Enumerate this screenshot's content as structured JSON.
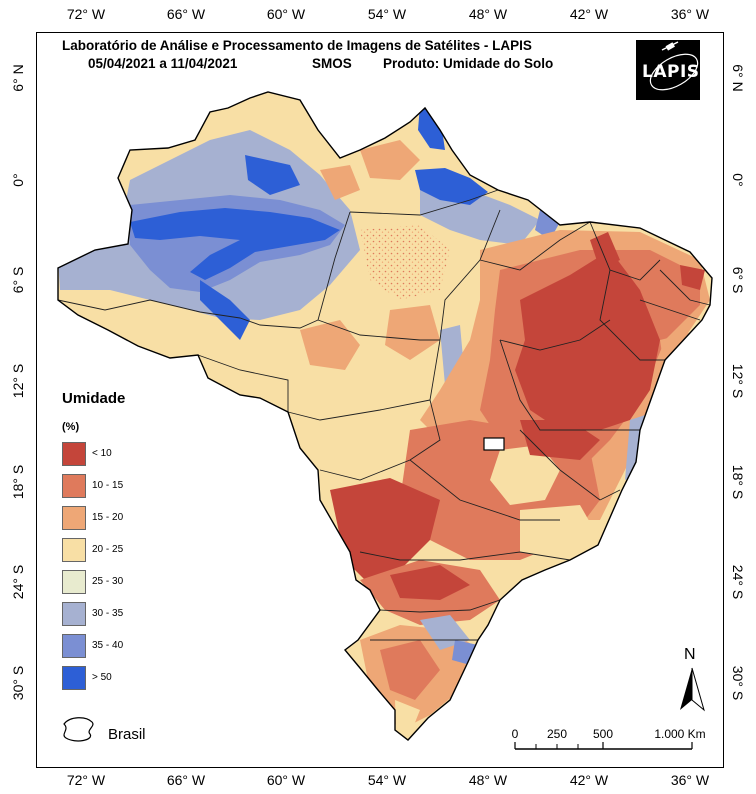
{
  "title": {
    "line1": "Laboratório de Análise e Processamento de Imagens de Satélites - LAPIS",
    "dates": "05/04/2021  a  11/04/2021",
    "sensor": "SMOS",
    "product": "Produto: Umidade do Solo"
  },
  "logo": {
    "text": "LAPIS",
    "icon": "satellite-logo"
  },
  "axes": {
    "longitude_ticks": [
      "72° W",
      "66° W",
      "60° W",
      "54° W",
      "48° W",
      "42° W",
      "36° W"
    ],
    "latitude_ticks": [
      "6° N",
      "0°",
      "6° S",
      "12° S",
      "18° S",
      "24° S",
      "30° S"
    ]
  },
  "legend": {
    "title": "Umidade",
    "unit": "(%)",
    "classes": [
      {
        "label": "< 10",
        "color": "#c4453a"
      },
      {
        "label": "10 - 15",
        "color": "#df7a5c"
      },
      {
        "label": "15 - 20",
        "color": "#eea776"
      },
      {
        "label": "20 - 25",
        "color": "#f8dfa5"
      },
      {
        "label": "25 - 30",
        "color": "#e8ebcf"
      },
      {
        "label": "30 - 35",
        "color": "#a6b1d1"
      },
      {
        "label": "35 - 40",
        "color": "#7b8fd3"
      },
      {
        "label": "> 50",
        "color": "#2d5fd6"
      }
    ],
    "boundary_label": "Brasil"
  },
  "north_arrow": {
    "label": "N"
  },
  "scale_bar": {
    "labels": [
      "0",
      "250",
      "500",
      "1.000 Km"
    ]
  }
}
